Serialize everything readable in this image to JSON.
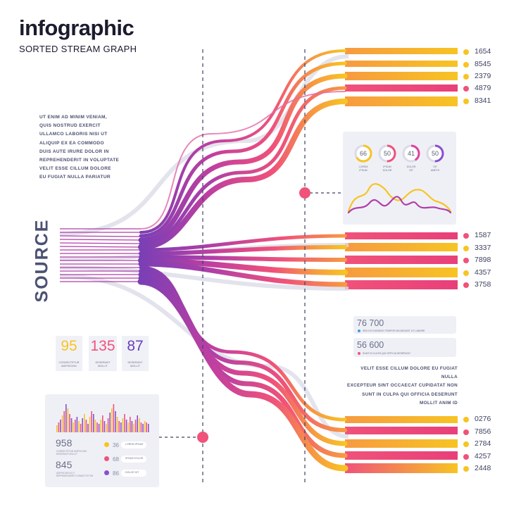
{
  "header": {
    "title": "infographic",
    "subtitle": "SORTED STREAM GRAPH"
  },
  "intro_text": "UT ENIM AD MINIM VENIAM,\nQUIS NOSTRUD EXERCIT\nULLAMCO LABORIS NISI UT\nALIQUIP EX EA COMMODO\nDUIS AUTE IRURE DOLOR IN\nREPREHENDERIT IN VOLUPTATE\nVELIT ESSE CILLUM DOLORE\nEU FUGIAT NULLA PARIATUR",
  "source_label": "SOURCE",
  "outputs": {
    "top": [
      {
        "value": "1654",
        "color": "#f7c423"
      },
      {
        "value": "8545",
        "color": "#f7c423"
      },
      {
        "value": "2379",
        "color": "#f7c423"
      },
      {
        "value": "4879",
        "color": "#f0527a"
      },
      {
        "value": "8341",
        "color": "#f7c423"
      }
    ],
    "middle": [
      {
        "value": "1587",
        "color": "#f0527a"
      },
      {
        "value": "3337",
        "color": "#f7c423"
      },
      {
        "value": "7898",
        "color": "#f0527a"
      },
      {
        "value": "4357",
        "color": "#f7c423"
      },
      {
        "value": "3758",
        "color": "#f0527a"
      }
    ],
    "bottom": [
      {
        "value": "0276",
        "color": "#f7c423"
      },
      {
        "value": "7856",
        "color": "#f0527a"
      },
      {
        "value": "2784",
        "color": "#f7c423"
      },
      {
        "value": "4257",
        "color": "#f0527a"
      },
      {
        "value": "2448",
        "color": "#f7c423"
      }
    ]
  },
  "gauges": [
    {
      "value": "66",
      "label": "LOREM\nIPSUM",
      "fill": 0.66,
      "color": "#f7c423"
    },
    {
      "value": "50",
      "label": "IPSUM\nDOLOR",
      "fill": 0.5,
      "color": "#f0527a"
    },
    {
      "value": "41",
      "label": "DOLOR\nSIT",
      "fill": 0.41,
      "color": "#e040a0"
    },
    {
      "value": "50",
      "label": "SIT\nAMETH",
      "fill": 0.5,
      "color": "#8a4fd0"
    }
  ],
  "metrics": [
    {
      "value": "76 700",
      "caption": "SED DO EIUSMOD TEMPOR INCIDIDUNT UT LABORE",
      "color": "#3aa0e0"
    },
    {
      "value": "56 600",
      "caption": "SUNT IN CULPA QUI OFFICIA DESERUNT",
      "color": "#f0527a"
    }
  ],
  "right_text": "VELIT ESSE CILLUM DOLORE EU FUGIAT NULLA\nEXCEPTEUR SINT OCCAECAT CUPIDATAT NON\nSUNT IN CULPA QUI OFFICIA DESERUNT\nMOLLIT ANIM ID",
  "stats": [
    {
      "value": "95",
      "caption": "CONSECTETUR\nADIPISCING",
      "color": "#f7c423"
    },
    {
      "value": "135",
      "caption": "DESERUNT\nMOLLIT",
      "color": "#f0527a"
    },
    {
      "value": "87",
      "caption": "DESERUNT\nMOLLIT",
      "color": "#8a4fd0"
    }
  ],
  "bottom_card": {
    "kpis": [
      {
        "value": "958",
        "caption": "CONSECTETUR ADIPISCING\nDESERUNT MOLLIT"
      },
      {
        "value": "845",
        "caption": "ADIPISCING ELIT\nREPREHENDERIT CONSECTETUR"
      }
    ],
    "legend": [
      {
        "value": "36",
        "label": "LOREM IPSUM",
        "color": "#f7c423"
      },
      {
        "value": "68",
        "label": "IPSUM DOLOR",
        "color": "#f0527a"
      },
      {
        "value": "86",
        "label": "DOLOR SIT",
        "color": "#8a4fd0"
      }
    ]
  },
  "colors": {
    "yellow": "#f7c423",
    "orange": "#f79a40",
    "pink": "#f0527a",
    "magenta": "#e040a0",
    "purple": "#8a4fd0"
  }
}
